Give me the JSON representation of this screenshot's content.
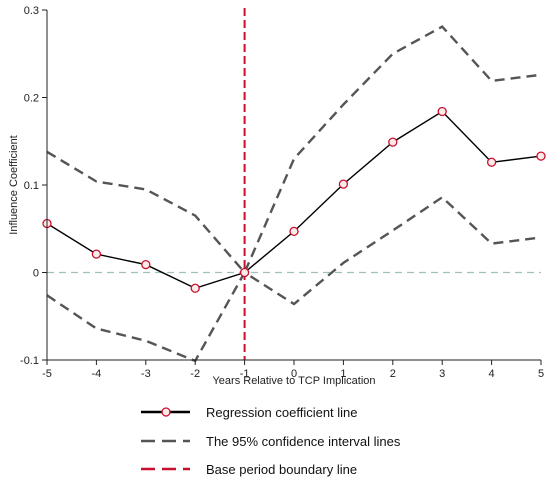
{
  "chart_data": {
    "type": "line",
    "title": "",
    "xlabel": "Years Relative to TCP Implication",
    "ylabel": "Influence Coefficient",
    "x": [
      -5,
      -4,
      -3,
      -2,
      -1,
      0,
      1,
      2,
      3,
      4,
      5
    ],
    "xlim": [
      -5,
      5
    ],
    "ylim": [
      -0.1,
      0.3
    ],
    "xticks": [
      "-5",
      "-4",
      "-3",
      "-2",
      "-1",
      "0",
      "1",
      "2",
      "3",
      "4",
      "5"
    ],
    "yticks": [
      "-0.1",
      "0",
      "0.1",
      "0.2",
      "0.3"
    ],
    "ytick_values": [
      -0.1,
      0,
      0.1,
      0.2,
      0.3
    ],
    "grid": false,
    "legend_position": "bottom",
    "series": [
      {
        "name": "Regression coefficient line",
        "values": [
          0.056,
          0.021,
          0.009,
          -0.018,
          0.0,
          0.047,
          0.101,
          0.149,
          0.184,
          0.126,
          0.133
        ],
        "color": "#000000",
        "marker_color": "#c8102e",
        "style": "solid-with-circle-markers"
      },
      {
        "name": "The 95% confidence interval lines",
        "values": [
          0.138,
          0.104,
          0.095,
          0.065,
          0.0,
          0.13,
          0.192,
          0.25,
          0.281,
          0.219,
          0.226
        ],
        "color": "#555555",
        "style": "dashed"
      },
      {
        "name": "The 95% confidence interval lines",
        "values": [
          -0.026,
          -0.064,
          -0.078,
          -0.101,
          0.0,
          -0.036,
          0.011,
          0.048,
          0.086,
          0.033,
          0.04
        ],
        "color": "#555555",
        "style": "dashed",
        "legend": false
      }
    ],
    "reference_lines": [
      {
        "axis": "x",
        "value": -1,
        "color": "#c8102e",
        "style": "dashed",
        "name": "Base period boundary line"
      },
      {
        "axis": "y",
        "value": 0,
        "color": "#9fc1bd",
        "style": "dashed"
      }
    ],
    "legend": [
      {
        "label": "Regression coefficient line",
        "kind": "marker-line",
        "color": "#000000",
        "marker_color": "#c8102e"
      },
      {
        "label": "The 95% confidence interval lines",
        "kind": "dashed",
        "color": "#555555"
      },
      {
        "label": "Base period boundary line",
        "kind": "dashed",
        "color": "#c8102e"
      }
    ]
  }
}
